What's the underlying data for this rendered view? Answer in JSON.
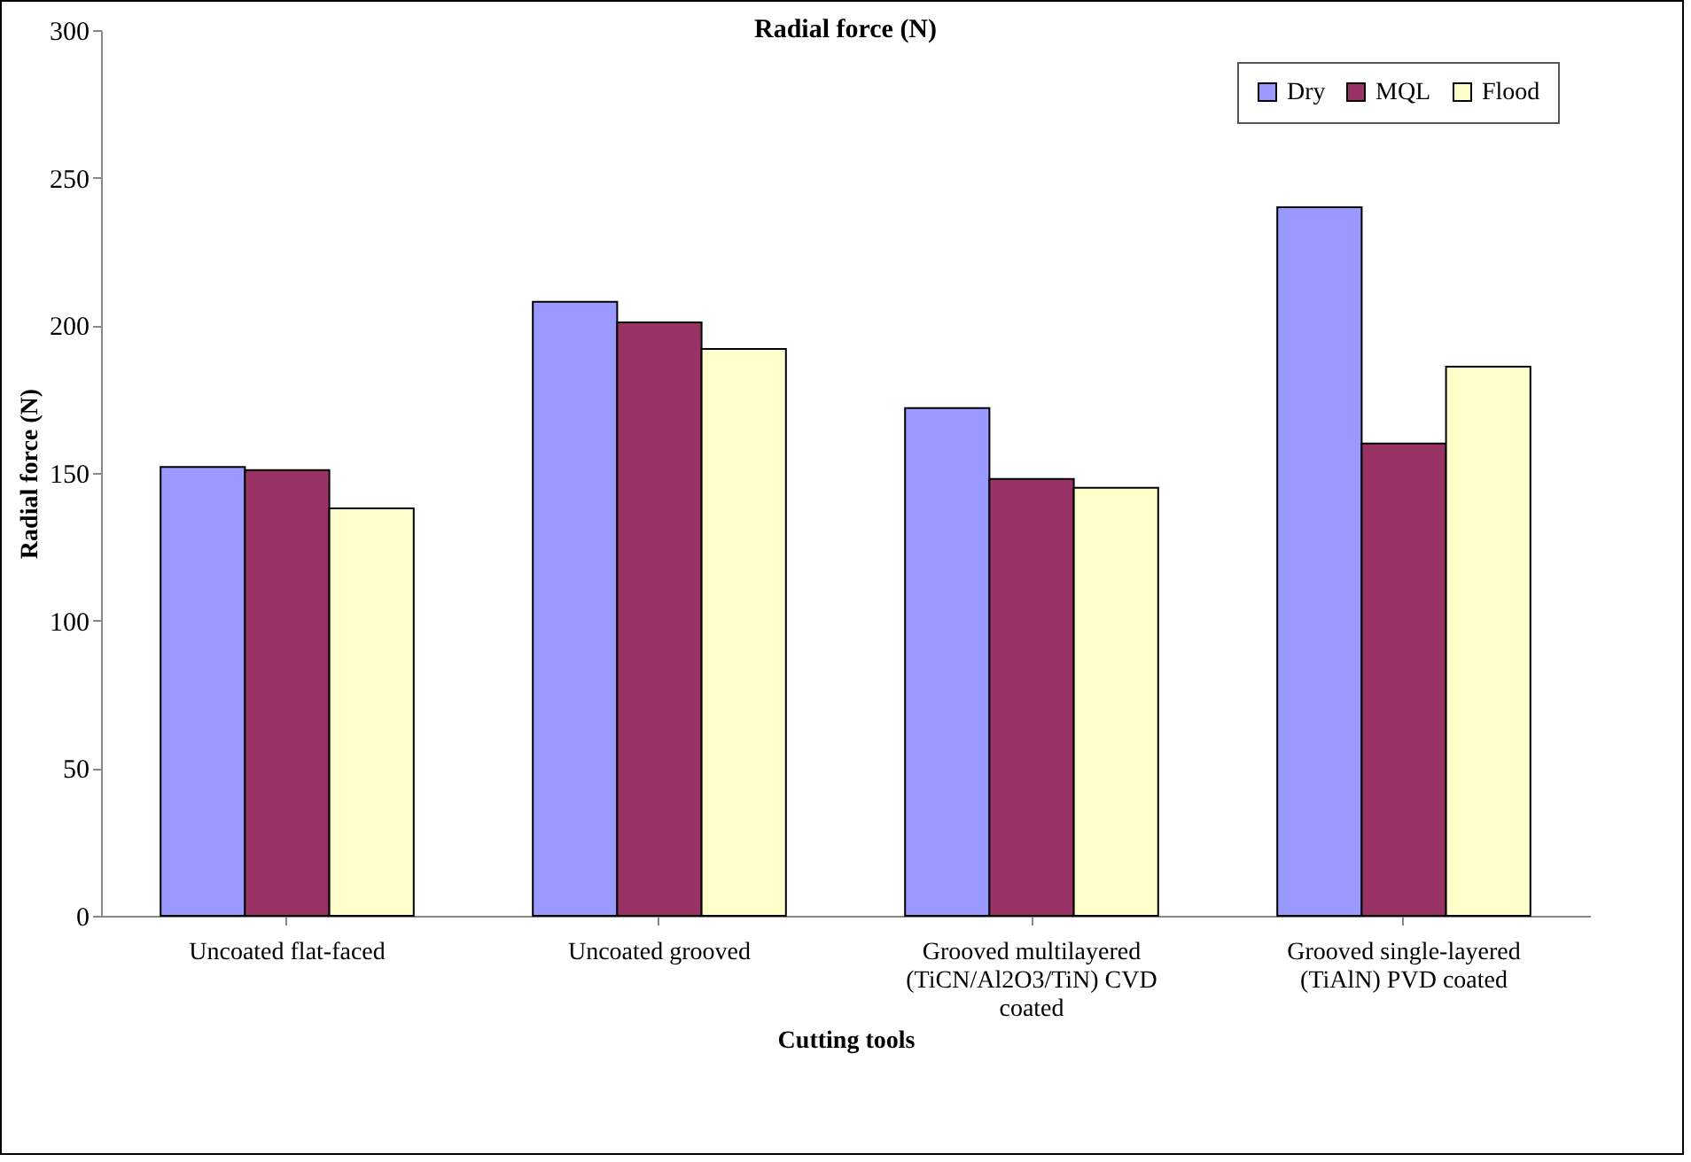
{
  "chart_data": {
    "type": "bar",
    "title": "Radial force (N)",
    "xlabel": "Cutting tools",
    "ylabel": "Radial force (N)",
    "categories": [
      "Uncoated flat-faced",
      "Uncoated grooved",
      "Grooved multilayered (TiCN/Al2O3/TiN) CVD coated",
      "Grooved single-layered (TiAlN) PVD coated"
    ],
    "series": [
      {
        "name": "Dry",
        "color": "#9999ff",
        "values": [
          152,
          208,
          172,
          240
        ]
      },
      {
        "name": "MQL",
        "color": "#993366",
        "values": [
          151,
          201,
          148,
          160
        ]
      },
      {
        "name": "Flood",
        "color": "#ffffcc",
        "values": [
          138,
          192,
          145,
          186
        ]
      }
    ],
    "ylim": [
      0,
      300
    ],
    "yticks": [
      0,
      50,
      100,
      150,
      200,
      250,
      300
    ],
    "grid": false,
    "legend": "top right"
  }
}
